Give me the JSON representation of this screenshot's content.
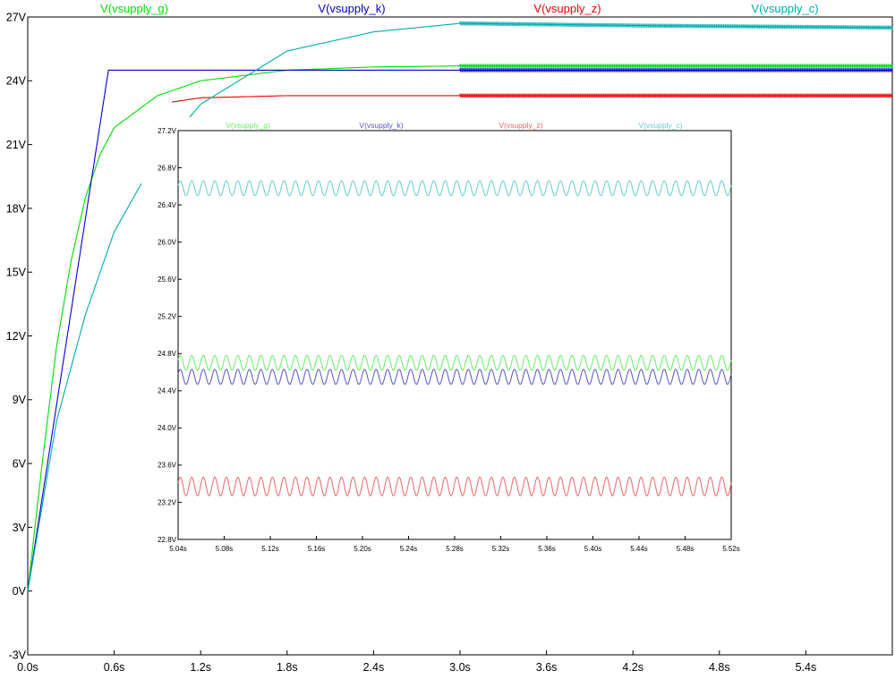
{
  "chart_data": [
    {
      "type": "line",
      "title": "",
      "xlabel": "",
      "ylabel": "",
      "xlim": [
        0,
        6.0
      ],
      "ylim": [
        -3,
        27
      ],
      "x_ticks": [
        0,
        0.6,
        1.2,
        1.8,
        2.4,
        3.0,
        3.6,
        4.2,
        4.8,
        5.4
      ],
      "x_tick_labels": [
        "0.0s",
        "0.6s",
        "1.2s",
        "1.8s",
        "2.4s",
        "3.0s",
        "3.6s",
        "4.2s",
        "4.8s",
        "5.4s"
      ],
      "y_ticks": [
        -3,
        0,
        3,
        6,
        9,
        12,
        15,
        18,
        21,
        24,
        27
      ],
      "y_tick_labels": [
        "-3V",
        "0V",
        "3V",
        "6V",
        "9V",
        "12V",
        "15V",
        "18V",
        "21V",
        "24V",
        "27V"
      ],
      "grid": false,
      "legend": "top",
      "series": [
        {
          "name": "V(vsupply_g)",
          "color": "#00dd00",
          "model": "exp",
          "final": 24.7,
          "tau": 0.3,
          "ripple_from": 3.0,
          "points": [
            [
              0,
              0
            ],
            [
              0.1,
              6
            ],
            [
              0.2,
              11.5
            ],
            [
              0.3,
              15.5
            ],
            [
              0.4,
              18.5
            ],
            [
              0.5,
              20.5
            ],
            [
              0.6,
              21.8
            ],
            [
              0.9,
              23.3
            ],
            [
              1.2,
              24.0
            ],
            [
              1.8,
              24.5
            ],
            [
              2.4,
              24.65
            ],
            [
              3.0,
              24.7
            ],
            [
              6.0,
              24.7
            ]
          ]
        },
        {
          "name": "V(vsupply_k)",
          "color": "#0000cc",
          "model": "ramp",
          "final": 24.5,
          "ramp_end": 0.56,
          "ripple_from": 3.0,
          "points": [
            [
              0,
              0
            ],
            [
              0.56,
              24.5
            ],
            [
              6.0,
              24.5
            ]
          ]
        },
        {
          "name": "V(vsupply_z)",
          "color": "#ee0000",
          "model": "exp",
          "final": 23.3,
          "tau": 0.22,
          "ripple_from": 3.0,
          "visible_from": 1.0,
          "points": [
            [
              1.0,
              23.0
            ],
            [
              1.2,
              23.2
            ],
            [
              1.8,
              23.3
            ],
            [
              6.0,
              23.3
            ]
          ]
        },
        {
          "name": "V(vsupply_c)",
          "color": "#00aaaa",
          "model": "exp",
          "final": 26.8,
          "tau": 0.55,
          "ripple_from": 3.0,
          "points": [
            [
              0,
              0
            ],
            [
              0.2,
              8
            ],
            [
              0.4,
              13
            ],
            [
              0.6,
              16.9
            ],
            [
              0.9,
              20.5
            ],
            [
              1.2,
              22.9
            ],
            [
              1.8,
              25.4
            ],
            [
              2.4,
              26.3
            ],
            [
              3.0,
              26.7
            ],
            [
              4.2,
              26.6
            ],
            [
              6.0,
              26.5
            ]
          ]
        }
      ]
    },
    {
      "type": "line",
      "title": "",
      "xlabel": "",
      "ylabel": "",
      "xlim": [
        5.04,
        5.52
      ],
      "ylim": [
        22.8,
        27.2
      ],
      "x_ticks": [
        5.04,
        5.08,
        5.12,
        5.16,
        5.2,
        5.24,
        5.28,
        5.32,
        5.36,
        5.4,
        5.44,
        5.48,
        5.52
      ],
      "x_tick_labels": [
        "5.04s",
        "5.08s",
        "5.12s",
        "5.16s",
        "5.20s",
        "5.24s",
        "5.28s",
        "5.32s",
        "5.36s",
        "5.40s",
        "5.44s",
        "5.48s",
        "5.52s"
      ],
      "y_ticks": [
        22.8,
        23.2,
        23.6,
        24.0,
        24.4,
        24.8,
        25.2,
        25.6,
        26.0,
        26.4,
        26.8,
        27.2
      ],
      "y_tick_labels": [
        "22.8V",
        "23.2V",
        "23.6V",
        "24.0V",
        "24.4V",
        "24.8V",
        "25.2V",
        "25.6V",
        "26.0V",
        "26.4V",
        "26.8V",
        "27.2V"
      ],
      "grid": false,
      "legend": "top",
      "ripple_frequency_hz": 100,
      "series": [
        {
          "name": "V(vsupply_g)",
          "color": "#66ee66",
          "min": 24.62,
          "max": 24.78
        },
        {
          "name": "V(vsupply_k)",
          "color": "#5555cc",
          "min": 24.47,
          "max": 24.63
        },
        {
          "name": "V(vsupply_z)",
          "color": "#ee6666",
          "min": 23.27,
          "max": 23.47
        },
        {
          "name": "V(vsupply_c)",
          "color": "#66cccc",
          "min": 26.5,
          "max": 26.66
        }
      ]
    }
  ]
}
